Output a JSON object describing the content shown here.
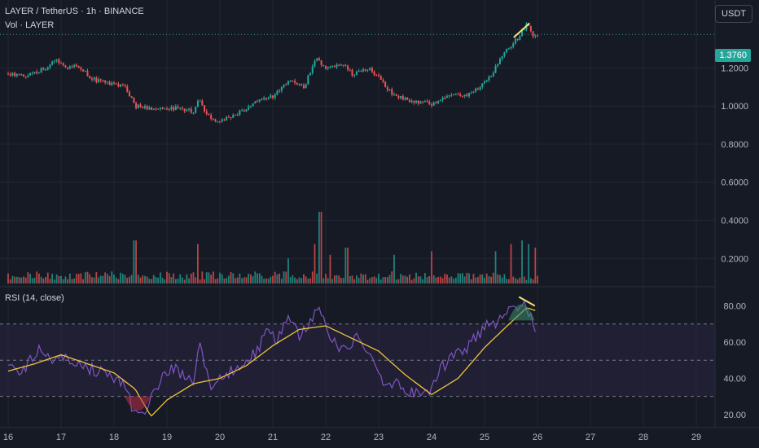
{
  "header": {
    "symbol_line": "LAYER / TetherUS · 1h · BINANCE",
    "volume_line": "Vol · LAYER",
    "rsi_line": "RSI (14, close)",
    "currency_button": "USDT",
    "last_price": "1.3760"
  },
  "colors": {
    "background": "#161a25",
    "up": "#26a69a",
    "down": "#ef5350",
    "rsi_line": "#7e57c2",
    "rsi_ma": "#f0c43a",
    "rsi_band": "#2a2442",
    "annotation": "#f5e27a",
    "grid": "#232734"
  },
  "chart_data": [
    {
      "type": "candlestick",
      "x_tick_labels": [
        "16",
        "17",
        "18",
        "19",
        "20",
        "21",
        "22",
        "23",
        "24",
        "25",
        "26",
        "27",
        "28",
        "29"
      ],
      "y_tick_labels": [
        "1.2000",
        "1.0000",
        "0.8000",
        "0.6000",
        "0.4000",
        "0.2000"
      ],
      "ylim": [
        0.06,
        1.45
      ],
      "last_price": 1.376,
      "path_points": [
        {
          "day": 16.0,
          "price": 1.17
        },
        {
          "day": 16.4,
          "price": 1.16
        },
        {
          "day": 16.7,
          "price": 1.2
        },
        {
          "day": 16.9,
          "price": 1.24
        },
        {
          "day": 17.1,
          "price": 1.2
        },
        {
          "day": 17.3,
          "price": 1.22
        },
        {
          "day": 17.6,
          "price": 1.14
        },
        {
          "day": 17.9,
          "price": 1.12
        },
        {
          "day": 18.2,
          "price": 1.1
        },
        {
          "day": 18.4,
          "price": 1.0
        },
        {
          "day": 18.8,
          "price": 0.98
        },
        {
          "day": 19.2,
          "price": 0.99
        },
        {
          "day": 19.5,
          "price": 0.97
        },
        {
          "day": 19.6,
          "price": 1.05
        },
        {
          "day": 19.75,
          "price": 0.95
        },
        {
          "day": 20.0,
          "price": 0.92
        },
        {
          "day": 20.4,
          "price": 0.97
        },
        {
          "day": 20.7,
          "price": 1.02
        },
        {
          "day": 21.0,
          "price": 1.05
        },
        {
          "day": 21.3,
          "price": 1.13
        },
        {
          "day": 21.6,
          "price": 1.1
        },
        {
          "day": 21.8,
          "price": 1.25
        },
        {
          "day": 22.0,
          "price": 1.2
        },
        {
          "day": 22.3,
          "price": 1.22
        },
        {
          "day": 22.5,
          "price": 1.17
        },
        {
          "day": 22.8,
          "price": 1.2
        },
        {
          "day": 23.0,
          "price": 1.15
        },
        {
          "day": 23.3,
          "price": 1.05
        },
        {
          "day": 23.6,
          "price": 1.03
        },
        {
          "day": 24.0,
          "price": 1.01
        },
        {
          "day": 24.3,
          "price": 1.06
        },
        {
          "day": 24.6,
          "price": 1.05
        },
        {
          "day": 24.9,
          "price": 1.1
        },
        {
          "day": 25.1,
          "price": 1.15
        },
        {
          "day": 25.3,
          "price": 1.25
        },
        {
          "day": 25.5,
          "price": 1.32
        },
        {
          "day": 25.65,
          "price": 1.36
        },
        {
          "day": 25.8,
          "price": 1.43
        },
        {
          "day": 25.9,
          "price": 1.37
        },
        {
          "day": 26.0,
          "price": 1.376
        }
      ]
    },
    {
      "type": "bar",
      "name": "Vol · LAYER",
      "x_tick_labels": [
        "16",
        "17",
        "18",
        "19",
        "20",
        "21",
        "22",
        "23",
        "24",
        "25",
        "26",
        "27",
        "28",
        "29"
      ],
      "spikes": [
        {
          "day": 18.4,
          "value": 0.6
        },
        {
          "day": 19.6,
          "value": 0.55
        },
        {
          "day": 21.3,
          "value": 0.35
        },
        {
          "day": 21.8,
          "value": 0.55
        },
        {
          "day": 21.9,
          "value": 1.0
        },
        {
          "day": 22.1,
          "value": 0.4
        },
        {
          "day": 22.4,
          "value": 0.5
        },
        {
          "day": 23.3,
          "value": 0.4
        },
        {
          "day": 24.0,
          "value": 0.45
        },
        {
          "day": 25.2,
          "value": 0.45
        },
        {
          "day": 25.5,
          "value": 0.55
        },
        {
          "day": 25.7,
          "value": 0.6
        },
        {
          "day": 25.85,
          "value": 0.55
        },
        {
          "day": 25.95,
          "value": 0.5
        }
      ]
    },
    {
      "type": "line",
      "name": "RSI (14, close)",
      "ylim": [
        15,
        87
      ],
      "y_tick_labels": [
        "80.00",
        "60.00",
        "40.00",
        "20.00"
      ],
      "bands": [
        70,
        50,
        30
      ],
      "x_tick_labels": [
        "16",
        "17",
        "18",
        "19",
        "20",
        "21",
        "22",
        "23",
        "24",
        "25",
        "26",
        "27",
        "28",
        "29"
      ],
      "series": [
        {
          "values_by_day": [
            {
              "day": 16.0,
              "rsi": 47
            },
            {
              "day": 16.3,
              "rsi": 44
            },
            {
              "day": 16.6,
              "rsi": 58
            },
            {
              "day": 16.8,
              "rsi": 50
            },
            {
              "day": 17.0,
              "rsi": 54
            },
            {
              "day": 17.3,
              "rsi": 47
            },
            {
              "day": 17.6,
              "rsi": 45
            },
            {
              "day": 17.9,
              "rsi": 42
            },
            {
              "day": 18.2,
              "rsi": 35
            },
            {
              "day": 18.4,
              "rsi": 20
            },
            {
              "day": 18.6,
              "rsi": 24
            },
            {
              "day": 18.8,
              "rsi": 36
            },
            {
              "day": 19.1,
              "rsi": 46
            },
            {
              "day": 19.3,
              "rsi": 42
            },
            {
              "day": 19.5,
              "rsi": 38
            },
            {
              "day": 19.6,
              "rsi": 62
            },
            {
              "day": 19.8,
              "rsi": 36
            },
            {
              "day": 20.1,
              "rsi": 41
            },
            {
              "day": 20.4,
              "rsi": 48
            },
            {
              "day": 20.7,
              "rsi": 55
            },
            {
              "day": 20.9,
              "rsi": 66
            },
            {
              "day": 21.1,
              "rsi": 62
            },
            {
              "day": 21.3,
              "rsi": 76
            },
            {
              "day": 21.5,
              "rsi": 62
            },
            {
              "day": 21.7,
              "rsi": 72
            },
            {
              "day": 21.9,
              "rsi": 79
            },
            {
              "day": 22.1,
              "rsi": 62
            },
            {
              "day": 22.3,
              "rsi": 56
            },
            {
              "day": 22.6,
              "rsi": 62
            },
            {
              "day": 22.9,
              "rsi": 52
            },
            {
              "day": 23.1,
              "rsi": 38
            },
            {
              "day": 23.4,
              "rsi": 36
            },
            {
              "day": 23.7,
              "rsi": 31
            },
            {
              "day": 24.0,
              "rsi": 33
            },
            {
              "day": 24.2,
              "rsi": 46
            },
            {
              "day": 24.4,
              "rsi": 52
            },
            {
              "day": 24.7,
              "rsi": 58
            },
            {
              "day": 25.0,
              "rsi": 68
            },
            {
              "day": 25.2,
              "rsi": 70
            },
            {
              "day": 25.4,
              "rsi": 78
            },
            {
              "day": 25.6,
              "rsi": 80
            },
            {
              "day": 25.75,
              "rsi": 84
            },
            {
              "day": 25.85,
              "rsi": 75
            },
            {
              "day": 25.95,
              "rsi": 66
            }
          ]
        },
        {
          "values_by_day": [
            {
              "day": 16.0,
              "ma": 44
            },
            {
              "day": 16.5,
              "ma": 48
            },
            {
              "day": 17.0,
              "ma": 53
            },
            {
              "day": 17.5,
              "ma": 48
            },
            {
              "day": 18.0,
              "ma": 43
            },
            {
              "day": 18.4,
              "ma": 34
            },
            {
              "day": 18.7,
              "ma": 19
            },
            {
              "day": 19.0,
              "ma": 28
            },
            {
              "day": 19.5,
              "ma": 37
            },
            {
              "day": 20.0,
              "ma": 40
            },
            {
              "day": 20.5,
              "ma": 47
            },
            {
              "day": 21.0,
              "ma": 58
            },
            {
              "day": 21.5,
              "ma": 67
            },
            {
              "day": 22.0,
              "ma": 69
            },
            {
              "day": 22.5,
              "ma": 62
            },
            {
              "day": 23.0,
              "ma": 55
            },
            {
              "day": 23.5,
              "ma": 42
            },
            {
              "day": 24.0,
              "ma": 31
            },
            {
              "day": 24.5,
              "ma": 40
            },
            {
              "day": 25.0,
              "ma": 57
            },
            {
              "day": 25.5,
              "ma": 71
            },
            {
              "day": 25.8,
              "ma": 79
            },
            {
              "day": 26.0,
              "ma": 77
            }
          ]
        }
      ]
    }
  ]
}
